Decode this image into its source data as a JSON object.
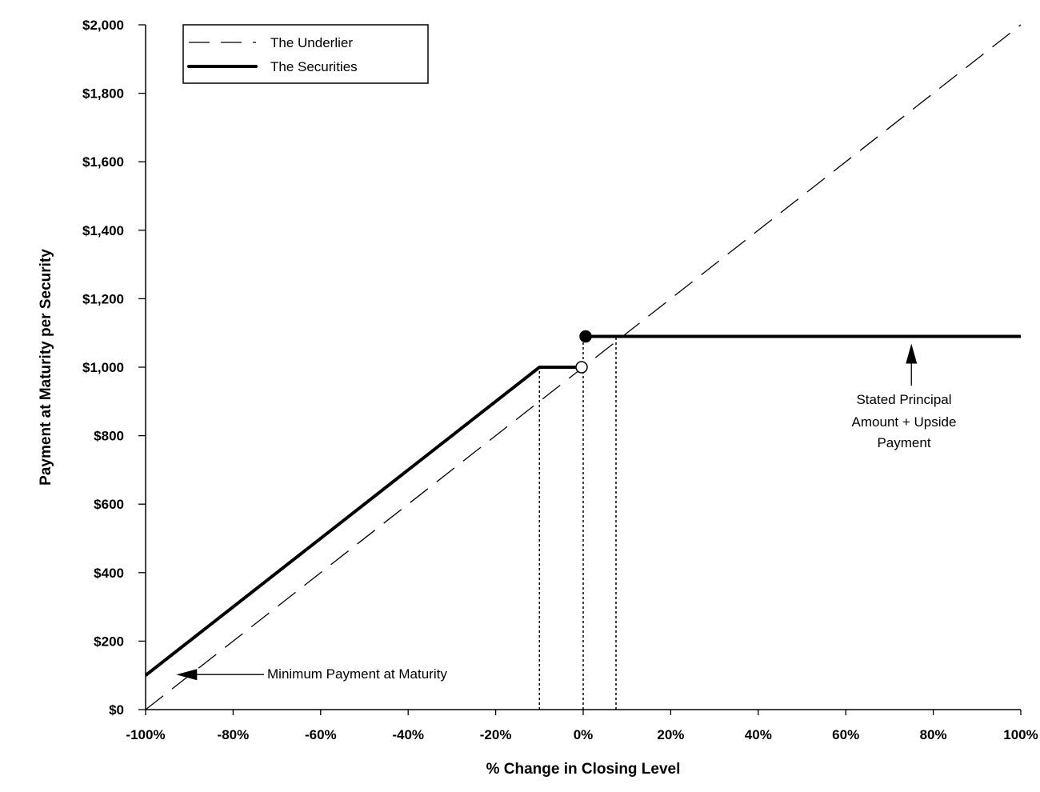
{
  "chart_data": {
    "type": "line",
    "xlabel": "% Change in Closing Level",
    "ylabel": "Payment at Maturity per Security",
    "xlim": [
      -100,
      100
    ],
    "ylim": [
      0,
      2000
    ],
    "x_ticks": [
      -100,
      -80,
      -60,
      -40,
      -20,
      0,
      20,
      40,
      60,
      80,
      100
    ],
    "x_tick_labels": [
      "-100%",
      "-80%",
      "-60%",
      "-40%",
      "-20%",
      "0%",
      "20%",
      "40%",
      "60%",
      "80%",
      "100%"
    ],
    "y_ticks": [
      0,
      200,
      400,
      600,
      800,
      1000,
      1200,
      1400,
      1600,
      1800,
      2000
    ],
    "y_tick_labels": [
      "$0",
      "$200",
      "$400",
      "$600",
      "$800",
      "$1,000",
      "$1,200",
      "$1,400",
      "$1,600",
      "$1,800",
      "$2,000"
    ],
    "grid": false,
    "legend": {
      "placement": "top-left",
      "entries": [
        "The Underlier",
        "The Securities"
      ]
    },
    "series": [
      {
        "name": "The Underlier",
        "style": "dashed",
        "x": [
          -100,
          100
        ],
        "y": [
          0,
          2000
        ]
      },
      {
        "name": "The Securities",
        "style": "solid",
        "segments": [
          {
            "x": [
              -100,
              -10,
              0
            ],
            "y": [
              100,
              1000,
              1000
            ]
          },
          {
            "x": [
              0,
              100
            ],
            "y": [
              1090,
              1090
            ]
          }
        ]
      }
    ],
    "markers": [
      {
        "type": "open",
        "x": 0,
        "y": 1000
      },
      {
        "type": "filled",
        "x": 0,
        "y": 1090
      }
    ],
    "reference_lines": [
      {
        "x": -10,
        "y_top": 1000
      },
      {
        "x": 0,
        "y_top": 1090
      },
      {
        "x": 7.5,
        "y_top": 1090
      }
    ],
    "annotations": [
      {
        "text": "Minimum Payment at Maturity",
        "arrow_to": {
          "x": -93,
          "y": 100
        }
      },
      {
        "lines": [
          "Stated Principal",
          "Amount + Upside",
          "Payment"
        ],
        "arrow_to": {
          "x": 75,
          "y": 1090
        }
      }
    ]
  }
}
